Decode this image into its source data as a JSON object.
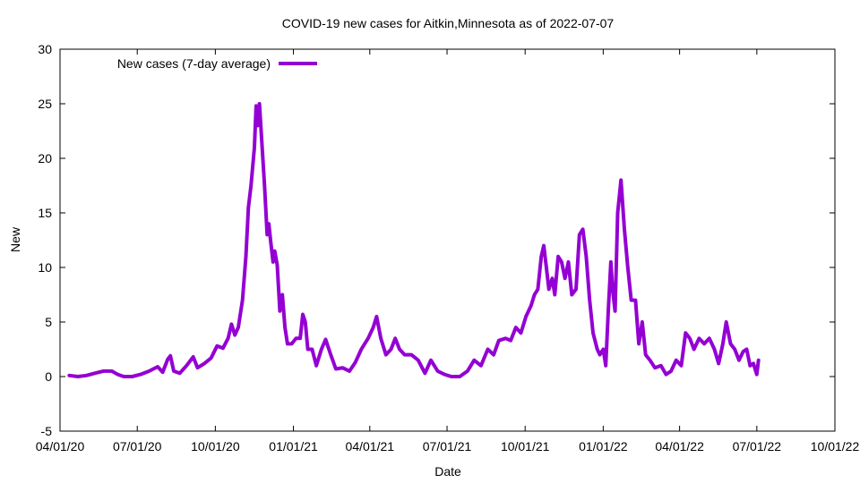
{
  "chart_data": {
    "type": "line",
    "title": "COVID-19 new cases for Aitkin,Minnesota as of 2022-07-07",
    "xlabel": "Date",
    "ylabel": "New",
    "ylim": [
      -5,
      30
    ],
    "yticks": [
      -5,
      0,
      5,
      10,
      15,
      20,
      25,
      30
    ],
    "xlim": [
      "2020-04-01",
      "2022-10-01"
    ],
    "xticks": [
      {
        "date": "2020-04-01",
        "label": "04/01/20"
      },
      {
        "date": "2020-07-01",
        "label": "07/01/20"
      },
      {
        "date": "2020-10-01",
        "label": "10/01/20"
      },
      {
        "date": "2021-01-01",
        "label": "01/01/21"
      },
      {
        "date": "2021-04-01",
        "label": "04/01/21"
      },
      {
        "date": "2021-07-01",
        "label": "07/01/21"
      },
      {
        "date": "2021-10-01",
        "label": "10/01/21"
      },
      {
        "date": "2022-01-01",
        "label": "01/01/22"
      },
      {
        "date": "2022-04-01",
        "label": "04/01/22"
      },
      {
        "date": "2022-07-01",
        "label": "07/01/22"
      },
      {
        "date": "2022-10-01",
        "label": "10/01/22"
      }
    ],
    "grid": false,
    "legend_position": "top-left",
    "series": [
      {
        "name": "New cases (7-day average)",
        "color": "#9400d3",
        "points": [
          [
            "2020-04-12",
            0.1
          ],
          [
            "2020-04-22",
            0.0
          ],
          [
            "2020-05-02",
            0.1
          ],
          [
            "2020-05-12",
            0.3
          ],
          [
            "2020-05-22",
            0.5
          ],
          [
            "2020-06-01",
            0.5
          ],
          [
            "2020-06-08",
            0.2
          ],
          [
            "2020-06-15",
            0.0
          ],
          [
            "2020-06-25",
            0.0
          ],
          [
            "2020-07-05",
            0.2
          ],
          [
            "2020-07-15",
            0.5
          ],
          [
            "2020-07-25",
            0.9
          ],
          [
            "2020-07-31",
            0.4
          ],
          [
            "2020-08-06",
            1.6
          ],
          [
            "2020-08-09",
            1.9
          ],
          [
            "2020-08-13",
            0.5
          ],
          [
            "2020-08-20",
            0.3
          ],
          [
            "2020-08-28",
            1.0
          ],
          [
            "2020-09-05",
            1.8
          ],
          [
            "2020-09-10",
            0.8
          ],
          [
            "2020-09-18",
            1.2
          ],
          [
            "2020-09-26",
            1.7
          ],
          [
            "2020-10-03",
            2.8
          ],
          [
            "2020-10-10",
            2.6
          ],
          [
            "2020-10-16",
            3.5
          ],
          [
            "2020-10-20",
            4.8
          ],
          [
            "2020-10-24",
            3.8
          ],
          [
            "2020-10-28",
            4.5
          ],
          [
            "2020-11-02",
            7.0
          ],
          [
            "2020-11-06",
            11.0
          ],
          [
            "2020-11-09",
            15.5
          ],
          [
            "2020-11-12",
            17.5
          ],
          [
            "2020-11-16",
            21.0
          ],
          [
            "2020-11-18",
            24.8
          ],
          [
            "2020-11-20",
            23.0
          ],
          [
            "2020-11-22",
            25.0
          ],
          [
            "2020-11-24",
            22.5
          ],
          [
            "2020-11-28",
            17.5
          ],
          [
            "2020-12-01",
            13.0
          ],
          [
            "2020-12-03",
            14.0
          ],
          [
            "2020-12-05",
            12.5
          ],
          [
            "2020-12-08",
            10.5
          ],
          [
            "2020-12-10",
            11.5
          ],
          [
            "2020-12-13",
            10.2
          ],
          [
            "2020-12-16",
            6.0
          ],
          [
            "2020-12-19",
            7.5
          ],
          [
            "2020-12-22",
            4.5
          ],
          [
            "2020-12-25",
            3.0
          ],
          [
            "2020-12-30",
            3.0
          ],
          [
            "2021-01-04",
            3.5
          ],
          [
            "2021-01-09",
            3.5
          ],
          [
            "2021-01-12",
            5.7
          ],
          [
            "2021-01-15",
            5.0
          ],
          [
            "2021-01-18",
            2.5
          ],
          [
            "2021-01-23",
            2.5
          ],
          [
            "2021-01-28",
            1.0
          ],
          [
            "2021-02-03",
            2.5
          ],
          [
            "2021-02-08",
            3.4
          ],
          [
            "2021-02-14",
            2.0
          ],
          [
            "2021-02-20",
            0.7
          ],
          [
            "2021-02-28",
            0.8
          ],
          [
            "2021-03-08",
            0.5
          ],
          [
            "2021-03-15",
            1.3
          ],
          [
            "2021-03-22",
            2.5
          ],
          [
            "2021-03-30",
            3.5
          ],
          [
            "2021-04-05",
            4.5
          ],
          [
            "2021-04-09",
            5.5
          ],
          [
            "2021-04-14",
            3.5
          ],
          [
            "2021-04-20",
            2.0
          ],
          [
            "2021-04-26",
            2.5
          ],
          [
            "2021-05-01",
            3.5
          ],
          [
            "2021-05-06",
            2.5
          ],
          [
            "2021-05-12",
            2.0
          ],
          [
            "2021-05-20",
            2.0
          ],
          [
            "2021-05-28",
            1.5
          ],
          [
            "2021-06-05",
            0.3
          ],
          [
            "2021-06-12",
            1.5
          ],
          [
            "2021-06-20",
            0.5
          ],
          [
            "2021-06-28",
            0.2
          ],
          [
            "2021-07-06",
            0.0
          ],
          [
            "2021-07-16",
            0.0
          ],
          [
            "2021-07-25",
            0.5
          ],
          [
            "2021-08-02",
            1.5
          ],
          [
            "2021-08-10",
            1.0
          ],
          [
            "2021-08-18",
            2.5
          ],
          [
            "2021-08-25",
            2.0
          ],
          [
            "2021-08-31",
            3.3
          ],
          [
            "2021-09-08",
            3.5
          ],
          [
            "2021-09-14",
            3.3
          ],
          [
            "2021-09-20",
            4.5
          ],
          [
            "2021-09-26",
            4.0
          ],
          [
            "2021-10-02",
            5.5
          ],
          [
            "2021-10-08",
            6.5
          ],
          [
            "2021-10-12",
            7.5
          ],
          [
            "2021-10-16",
            8.0
          ],
          [
            "2021-10-20",
            11.0
          ],
          [
            "2021-10-23",
            12.0
          ],
          [
            "2021-10-26",
            10.0
          ],
          [
            "2021-10-29",
            8.0
          ],
          [
            "2021-11-02",
            9.0
          ],
          [
            "2021-11-05",
            7.5
          ],
          [
            "2021-11-09",
            11.0
          ],
          [
            "2021-11-13",
            10.5
          ],
          [
            "2021-11-17",
            9.0
          ],
          [
            "2021-11-21",
            10.5
          ],
          [
            "2021-11-25",
            7.5
          ],
          [
            "2021-11-30",
            8.0
          ],
          [
            "2021-12-04",
            13.0
          ],
          [
            "2021-12-08",
            13.5
          ],
          [
            "2021-12-12",
            11.0
          ],
          [
            "2021-12-16",
            7.0
          ],
          [
            "2021-12-20",
            4.0
          ],
          [
            "2021-12-25",
            2.5
          ],
          [
            "2021-12-28",
            2.0
          ],
          [
            "2022-01-01",
            2.5
          ],
          [
            "2022-01-04",
            1.0
          ],
          [
            "2022-01-07",
            6.0
          ],
          [
            "2022-01-10",
            10.5
          ],
          [
            "2022-01-12",
            8.0
          ],
          [
            "2022-01-15",
            6.0
          ],
          [
            "2022-01-18",
            15.0
          ],
          [
            "2022-01-22",
            18.0
          ],
          [
            "2022-01-26",
            13.5
          ],
          [
            "2022-01-30",
            10.0
          ],
          [
            "2022-02-03",
            7.0
          ],
          [
            "2022-02-08",
            7.0
          ],
          [
            "2022-02-12",
            3.0
          ],
          [
            "2022-02-16",
            5.0
          ],
          [
            "2022-02-20",
            2.0
          ],
          [
            "2022-02-25",
            1.5
          ],
          [
            "2022-03-03",
            0.8
          ],
          [
            "2022-03-10",
            1.0
          ],
          [
            "2022-03-16",
            0.2
          ],
          [
            "2022-03-22",
            0.5
          ],
          [
            "2022-03-28",
            1.5
          ],
          [
            "2022-04-03",
            1.0
          ],
          [
            "2022-04-08",
            4.0
          ],
          [
            "2022-04-13",
            3.5
          ],
          [
            "2022-04-18",
            2.5
          ],
          [
            "2022-04-24",
            3.5
          ],
          [
            "2022-04-30",
            3.0
          ],
          [
            "2022-05-06",
            3.5
          ],
          [
            "2022-05-12",
            2.5
          ],
          [
            "2022-05-17",
            1.2
          ],
          [
            "2022-05-22",
            3.0
          ],
          [
            "2022-05-26",
            5.0
          ],
          [
            "2022-05-31",
            3.0
          ],
          [
            "2022-06-05",
            2.5
          ],
          [
            "2022-06-10",
            1.5
          ],
          [
            "2022-06-15",
            2.3
          ],
          [
            "2022-06-19",
            2.5
          ],
          [
            "2022-06-23",
            1.0
          ],
          [
            "2022-06-27",
            1.2
          ],
          [
            "2022-07-01",
            0.2
          ],
          [
            "2022-07-03",
            1.5
          ]
        ]
      }
    ]
  }
}
